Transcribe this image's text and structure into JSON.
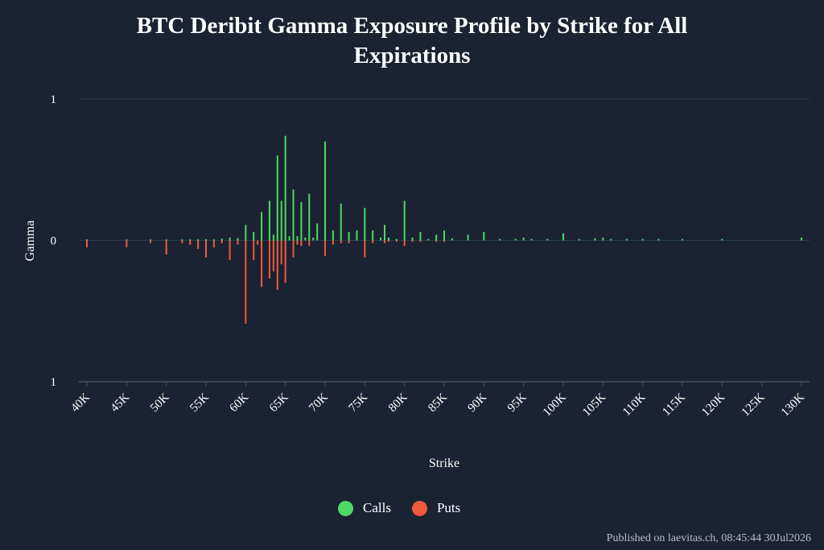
{
  "title_lines": [
    "BTC Deribit Gamma Exposure Profile by Strike for All",
    "Expirations"
  ],
  "footer": "Published on laevitas.ch, 08:45:44 30Jul2026",
  "colors": {
    "calls": "#4cd964",
    "puts": "#f05a3c",
    "background": "#1b2332",
    "grid": "#2a3a52",
    "axis": "#4a5160"
  },
  "chart_data": {
    "type": "bar",
    "title": "BTC Deribit Gamma Exposure Profile by Strike for All Expirations",
    "xlabel": "Strike",
    "ylabel": "Gamma",
    "xlim": [
      40000,
      130000
    ],
    "ylim": [
      -1,
      1
    ],
    "x_ticks": [
      40000,
      45000,
      50000,
      55000,
      60000,
      65000,
      70000,
      75000,
      80000,
      85000,
      90000,
      95000,
      100000,
      105000,
      110000,
      115000,
      120000,
      125000,
      130000
    ],
    "x_tick_labels": [
      "40K",
      "45K",
      "50K",
      "55K",
      "60K",
      "65K",
      "70K",
      "75K",
      "80K",
      "85K",
      "90K",
      "95K",
      "100K",
      "105K",
      "110K",
      "115K",
      "120K",
      "125K",
      "130K"
    ],
    "y_ticks": [
      1,
      0,
      -1
    ],
    "y_tick_labels": [
      "1",
      "0",
      "1"
    ],
    "legend_position": "bottom-center",
    "series": [
      {
        "name": "Calls",
        "color": "#4cd964",
        "points": [
          [
            40000,
            0.003
          ],
          [
            45000,
            0.004
          ],
          [
            48000,
            0.003
          ],
          [
            50000,
            0.003
          ],
          [
            52000,
            0.004
          ],
          [
            53000,
            0.005
          ],
          [
            54000,
            0.004
          ],
          [
            55000,
            0.008
          ],
          [
            56000,
            0.004
          ],
          [
            57000,
            0.012
          ],
          [
            58000,
            0.02
          ],
          [
            59000,
            0.015
          ],
          [
            60000,
            0.11
          ],
          [
            61000,
            0.06
          ],
          [
            62000,
            0.2
          ],
          [
            63000,
            0.28
          ],
          [
            63500,
            0.04
          ],
          [
            64000,
            0.6
          ],
          [
            64500,
            0.28
          ],
          [
            65000,
            0.74
          ],
          [
            65500,
            0.03
          ],
          [
            66000,
            0.36
          ],
          [
            66500,
            0.03
          ],
          [
            67000,
            0.27
          ],
          [
            67500,
            0.02
          ],
          [
            68000,
            0.33
          ],
          [
            68500,
            0.02
          ],
          [
            69000,
            0.12
          ],
          [
            70000,
            0.7
          ],
          [
            71000,
            0.07
          ],
          [
            72000,
            0.26
          ],
          [
            73000,
            0.06
          ],
          [
            74000,
            0.07
          ],
          [
            75000,
            0.23
          ],
          [
            76000,
            0.07
          ],
          [
            77000,
            0.02
          ],
          [
            77500,
            0.11
          ],
          [
            78000,
            0.02
          ],
          [
            79000,
            0.01
          ],
          [
            80000,
            0.28
          ],
          [
            81000,
            0.02
          ],
          [
            82000,
            0.06
          ],
          [
            83000,
            0.01
          ],
          [
            84000,
            0.04
          ],
          [
            85000,
            0.07
          ],
          [
            86000,
            0.015
          ],
          [
            88000,
            0.04
          ],
          [
            90000,
            0.06
          ],
          [
            92000,
            0.01
          ],
          [
            94000,
            0.01
          ],
          [
            95000,
            0.02
          ],
          [
            96000,
            0.01
          ],
          [
            98000,
            0.01
          ],
          [
            100000,
            0.05
          ],
          [
            102000,
            0.01
          ],
          [
            104000,
            0.015
          ],
          [
            105000,
            0.02
          ],
          [
            106000,
            0.01
          ],
          [
            108000,
            0.01
          ],
          [
            110000,
            0.01
          ],
          [
            112000,
            0.01
          ],
          [
            115000,
            0.01
          ],
          [
            120000,
            0.01
          ],
          [
            130000,
            0.02
          ]
        ]
      },
      {
        "name": "Puts",
        "color": "#f05a3c",
        "points": [
          [
            40000,
            -0.05
          ],
          [
            45000,
            -0.05
          ],
          [
            48000,
            -0.02
          ],
          [
            50000,
            -0.1
          ],
          [
            52000,
            -0.02
          ],
          [
            53000,
            -0.03
          ],
          [
            54000,
            -0.06
          ],
          [
            55000,
            -0.12
          ],
          [
            56000,
            -0.05
          ],
          [
            57000,
            -0.02
          ],
          [
            58000,
            -0.14
          ],
          [
            59000,
            -0.03
          ],
          [
            60000,
            -0.59
          ],
          [
            61000,
            -0.14
          ],
          [
            61500,
            -0.03
          ],
          [
            62000,
            -0.33
          ],
          [
            63000,
            -0.27
          ],
          [
            63500,
            -0.22
          ],
          [
            64000,
            -0.35
          ],
          [
            64500,
            -0.17
          ],
          [
            65000,
            -0.3
          ],
          [
            66000,
            -0.12
          ],
          [
            66500,
            -0.03
          ],
          [
            67000,
            -0.04
          ],
          [
            68000,
            -0.04
          ],
          [
            70000,
            -0.11
          ],
          [
            71000,
            -0.03
          ],
          [
            72000,
            -0.02
          ],
          [
            73000,
            -0.02
          ],
          [
            75000,
            -0.12
          ],
          [
            76000,
            -0.02
          ],
          [
            77500,
            -0.02
          ],
          [
            78000,
            -0.01
          ],
          [
            79000,
            -0.01
          ],
          [
            80000,
            -0.04
          ],
          [
            81000,
            -0.01
          ],
          [
            82000,
            -0.01
          ],
          [
            84000,
            -0.01
          ],
          [
            85000,
            -0.01
          ]
        ]
      }
    ]
  }
}
